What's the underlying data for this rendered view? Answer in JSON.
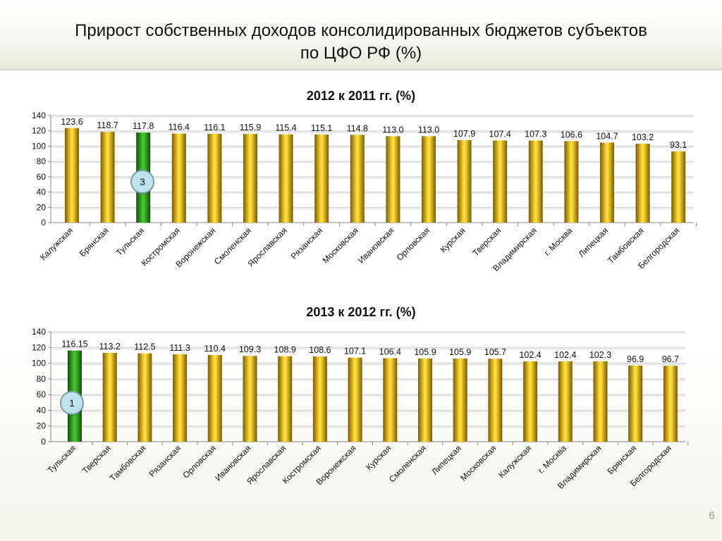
{
  "slide": {
    "title_line1": "Прирост собственных доходов консолидированных бюджетов субъектов",
    "title_line2": "по ЦФО РФ (%)",
    "page_number": "6"
  },
  "colors": {
    "bar_gold": "#f2b800",
    "bar_highlight": "#2f9a1f",
    "badge_fill": "#bfe3ec",
    "badge_stroke": "#7a9fa8"
  },
  "chart_data": [
    {
      "type": "bar",
      "title": "2012 к 2011 гг. (%)",
      "categories": [
        "Калужская",
        "Брянская",
        "Тульская",
        "Костромская",
        "Воронежская",
        "Смоленская",
        "Ярославская",
        "Рязанская",
        "Московская",
        "Ивановская",
        "Орловская",
        "Курская",
        "Тверская",
        "Владимирская",
        "г. Москва",
        "Липецкая",
        "Тамбовская",
        "Белгородская"
      ],
      "values": [
        123.6,
        118.7,
        117.8,
        116.4,
        116.1,
        115.9,
        115.4,
        115.1,
        114.8,
        113.0,
        113.0,
        107.9,
        107.4,
        107.3,
        106.6,
        104.7,
        103.2,
        93.1
      ],
      "value_labels": [
        "123.6",
        "118.7",
        "117.8",
        "116.4",
        "116.1",
        "115.9",
        "115.4",
        "115.1",
        "114.8",
        "113.0",
        "113.0",
        "107.9",
        "107.4",
        "107.3",
        "106.6",
        "104.7",
        "103.2",
        "93.1"
      ],
      "highlight_index": 2,
      "badge": "3",
      "ylim": [
        0,
        140
      ],
      "yticks": [
        0,
        20,
        40,
        60,
        80,
        100,
        120,
        140
      ],
      "grid": true,
      "xlabel": "",
      "ylabel": ""
    },
    {
      "type": "bar",
      "title": "2013 к 2012 гг. (%)",
      "categories": [
        "Тульская",
        "Тверская",
        "Тамбовская",
        "Рязанская",
        "Орловская",
        "Ивановская",
        "Ярославская",
        "Костромская",
        "Воронежская",
        "Курская",
        "Смоленская",
        "Липецкая",
        "Московская",
        "Калужская",
        "г. Москва",
        "Владимирская",
        "Брянская",
        "Белгородская"
      ],
      "values": [
        116.15,
        113.2,
        112.5,
        111.3,
        110.4,
        109.3,
        108.9,
        108.6,
        107.1,
        106.4,
        105.9,
        105.9,
        105.7,
        102.4,
        102.4,
        102.3,
        96.9,
        96.7
      ],
      "value_labels": [
        "116.15",
        "113.2",
        "112.5",
        "111.3",
        "110.4",
        "109.3",
        "108.9",
        "108.6",
        "107.1",
        "106.4",
        "105.9",
        "105.9",
        "105.7",
        "102.4",
        "102.4",
        "102.3",
        "96.9",
        "96.7"
      ],
      "highlight_index": 0,
      "badge": "1",
      "ylim": [
        0,
        140
      ],
      "yticks": [
        0,
        20,
        40,
        60,
        80,
        100,
        120,
        140
      ],
      "grid": true,
      "xlabel": "",
      "ylabel": ""
    }
  ]
}
